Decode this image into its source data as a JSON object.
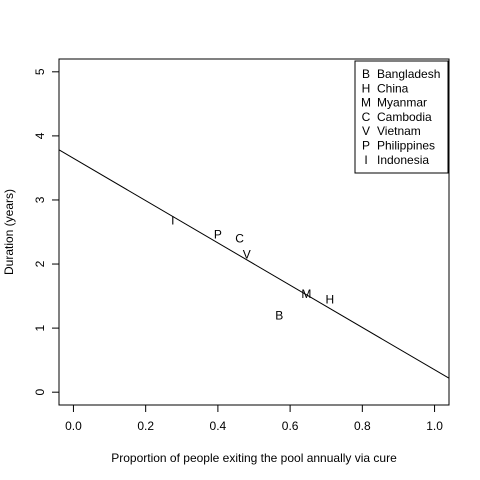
{
  "chart_data": {
    "type": "scatter",
    "xlabel": "Proportion of people exiting the pool annually via cure",
    "ylabel": "Duration (years)",
    "xlim": [
      -0.04,
      1.04
    ],
    "ylim": [
      -0.2,
      5.2
    ],
    "x_ticks": [
      "0.0",
      "0.2",
      "0.4",
      "0.6",
      "0.8",
      "1.0"
    ],
    "y_ticks": [
      "0",
      "1",
      "2",
      "3",
      "4",
      "5"
    ],
    "x_tick_values": [
      0,
      0.2,
      0.4,
      0.6,
      0.8,
      1.0
    ],
    "y_tick_values": [
      0,
      1,
      2,
      3,
      4,
      5
    ],
    "grid": false,
    "legend_position": "top-right",
    "points": [
      {
        "symbol": "B",
        "name": "Bangladesh",
        "x": 0.57,
        "y": 1.2
      },
      {
        "symbol": "H",
        "name": "China",
        "x": 0.71,
        "y": 1.45
      },
      {
        "symbol": "M",
        "name": "Myanmar",
        "x": 0.645,
        "y": 1.53
      },
      {
        "symbol": "C",
        "name": "Cambodia",
        "x": 0.46,
        "y": 2.4
      },
      {
        "symbol": "V",
        "name": "Vietnam",
        "x": 0.48,
        "y": 2.15
      },
      {
        "symbol": "P",
        "name": "Philippines",
        "x": 0.4,
        "y": 2.46
      },
      {
        "symbol": "I",
        "name": "Indonesia",
        "x": 0.275,
        "y": 2.68
      }
    ],
    "fit_line": {
      "intercept": 3.65,
      "slope": -3.3
    },
    "legend": [
      {
        "symbol": "B",
        "label": "Bangladesh"
      },
      {
        "symbol": "H",
        "label": "China"
      },
      {
        "symbol": "M",
        "label": "Myanmar"
      },
      {
        "symbol": "C",
        "label": "Cambodia"
      },
      {
        "symbol": "V",
        "label": "Vietnam"
      },
      {
        "symbol": "P",
        "label": "Philippines"
      },
      {
        "symbol": "I",
        "label": "Indonesia"
      }
    ]
  }
}
